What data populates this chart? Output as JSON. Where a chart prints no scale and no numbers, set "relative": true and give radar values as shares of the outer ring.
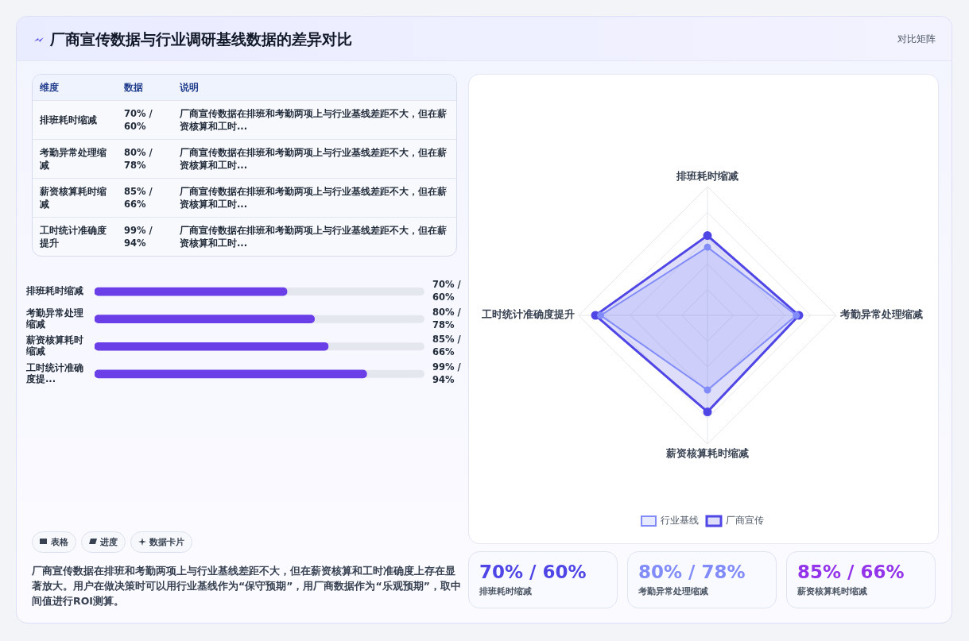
{
  "chart_data": [
    {
      "type": "other",
      "title": "厂商宣传数据与行业调研基线数据的差异对比",
      "annotations": [
        "对比矩阵"
      ]
    },
    {
      "type": "other",
      "annotations": [
        "维度",
        "数据",
        "说明",
        "排班耗时缩减",
        "70% / 60%",
        "厂商宣传数据在排班和考勤两项上与行业基线差距不大，但在薪资核算和工时...",
        "考勤异常处理缩减",
        "80% / 78%",
        "厂商宣传数据在排班和考勤两项上与行业基线差距不大，但在薪资核算和工时...",
        "薪资核算耗时缩减",
        "85% / 66%",
        "厂商宣传数据在排班和考勤两项上与行业基线差距不大，但在薪资核算和工时...",
        "工时统计准确度提升",
        "99% / 94%",
        "厂商宣传数据在排班和考勤两项上与行业基线差距不大，但在薪资核算和工时..."
      ]
    },
    {
      "type": "bar",
      "orientation": "horizontal",
      "xlim": [
        0,
        120
      ],
      "categories": [
        "排班耗时缩减",
        "考勤异常处理缩减",
        "薪资核算耗时缩减",
        "工时统计准确度提..."
      ],
      "values": [
        70,
        80,
        85,
        99
      ],
      "color": "#6b3fe7",
      "value_labels": [
        "70% / 60%",
        "80% / 78%",
        "85% / 66%",
        "99% / 94%"
      ]
    },
    {
      "type": "other",
      "annotations": [
        "表格",
        "进度",
        "数据卡片",
        "厂商宣传数据在排班和考勤两项上与行业基线差距不大，但在薪资核算和工时准确度上存在显著放大。用户在做决策时可以用行业基线作为“保守预期”，用厂商数据作为“乐观预期”，取中间值进行ROI测算。"
      ]
    },
    {
      "type": "radar",
      "relative": true,
      "grid": true,
      "legend": "bottom",
      "marker": "circle",
      "categories": [
        "排班耗时缩减",
        "考勤异常处理缩减",
        "薪资核算耗时缩减",
        "工时统计准确度提升"
      ],
      "series": [
        {
          "name": "厂商宣传",
          "color": "#4f46e5",
          "values": [
            0.62,
            0.71,
            0.75,
            0.87
          ]
        },
        {
          "name": "行业基线",
          "color": "#818cf8",
          "values": [
            0.53,
            0.69,
            0.58,
            0.83
          ]
        }
      ]
    },
    {
      "type": "other",
      "colors": [
        "#4f46e5",
        "#818cf8",
        "#9333ea"
      ],
      "annotations": [
        "70% / 60%",
        "排班耗时缩减",
        "80% / 78%",
        "考勤异常处理缩减",
        "85% / 66%",
        "薪资核算耗时缩减"
      ]
    }
  ]
}
